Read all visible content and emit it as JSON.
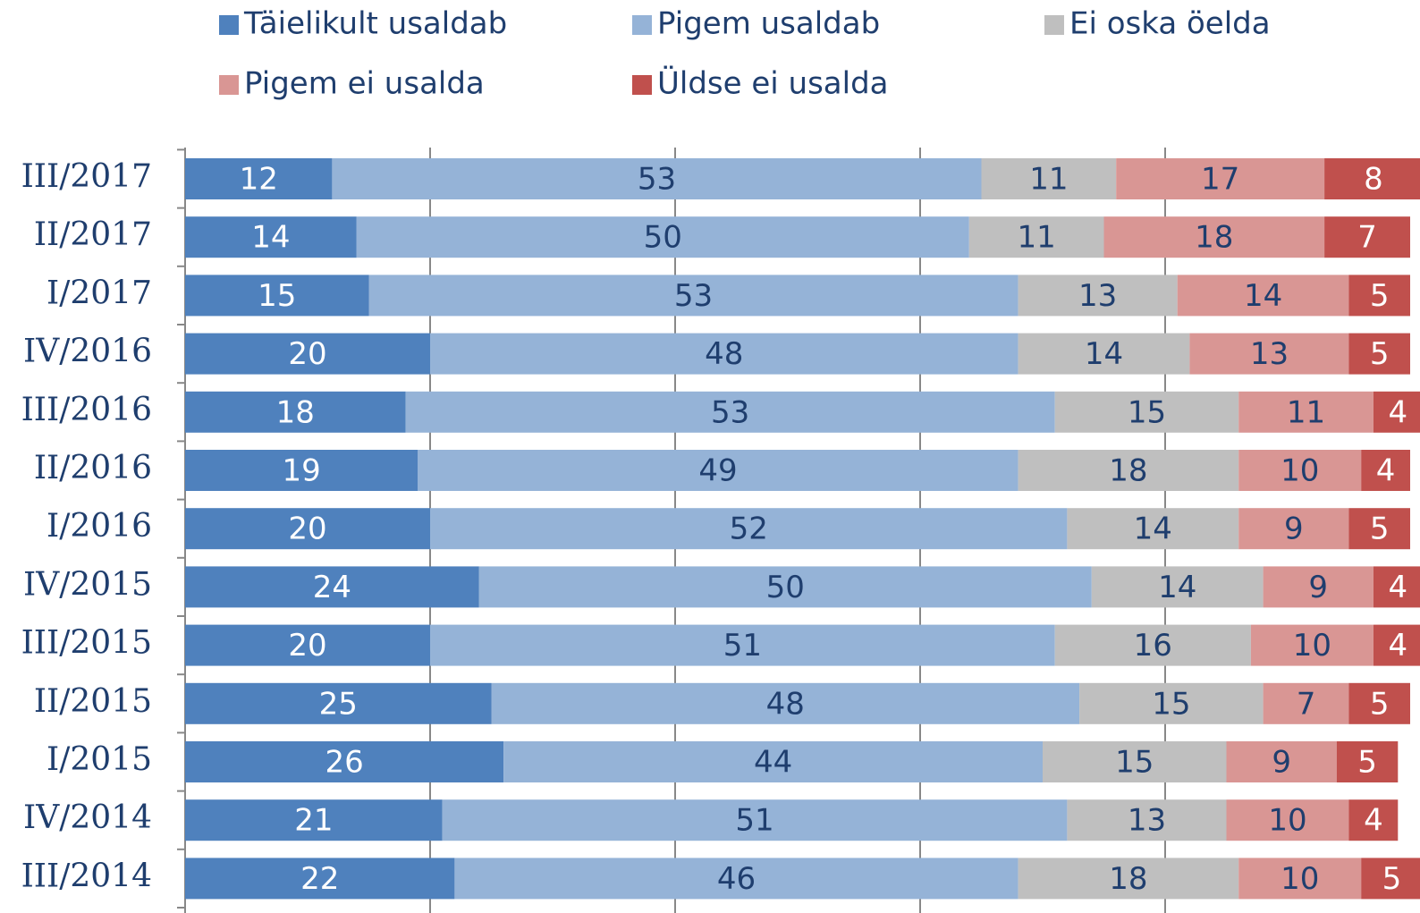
{
  "chart_data": {
    "type": "stacked-bar-horizontal",
    "categories": [
      "III/2017",
      "II/2017",
      "I/2017",
      "IV/2016",
      "III/2016",
      "II/2016",
      "I/2016",
      "IV/2015",
      "III/2015",
      "II/2015",
      "I/2015",
      "IV/2014",
      "III/2014"
    ],
    "series": [
      {
        "name": "Täielikult usaldab",
        "color": "#4f81bd",
        "label_color": "#ffffff",
        "values": [
          12,
          14,
          15,
          20,
          18,
          19,
          20,
          24,
          20,
          25,
          26,
          21,
          22
        ]
      },
      {
        "name": "Pigem usaldab",
        "color": "#95b3d7",
        "label_color": "#1f3e6e",
        "values": [
          53,
          50,
          53,
          48,
          53,
          49,
          52,
          50,
          51,
          48,
          44,
          51,
          46
        ]
      },
      {
        "name": "Ei oska öelda",
        "color": "#bfbfbf",
        "label_color": "#1f3e6e",
        "values": [
          11,
          11,
          13,
          14,
          15,
          18,
          14,
          14,
          16,
          15,
          15,
          13,
          18
        ]
      },
      {
        "name": "Pigem ei usalda",
        "color": "#d99694",
        "label_color": "#1f3e6e",
        "values": [
          17,
          18,
          14,
          13,
          11,
          10,
          9,
          9,
          10,
          7,
          9,
          10,
          10
        ]
      },
      {
        "name": "Üldse ei usalda",
        "color": "#c0504d",
        "label_color": "#ffffff",
        "values": [
          8,
          7,
          5,
          5,
          4,
          4,
          5,
          4,
          4,
          5,
          5,
          4,
          5
        ]
      }
    ],
    "xlim": [
      0,
      100
    ],
    "xticks": [
      0,
      20,
      40,
      60,
      80
    ],
    "grid": true,
    "legend": "top"
  }
}
